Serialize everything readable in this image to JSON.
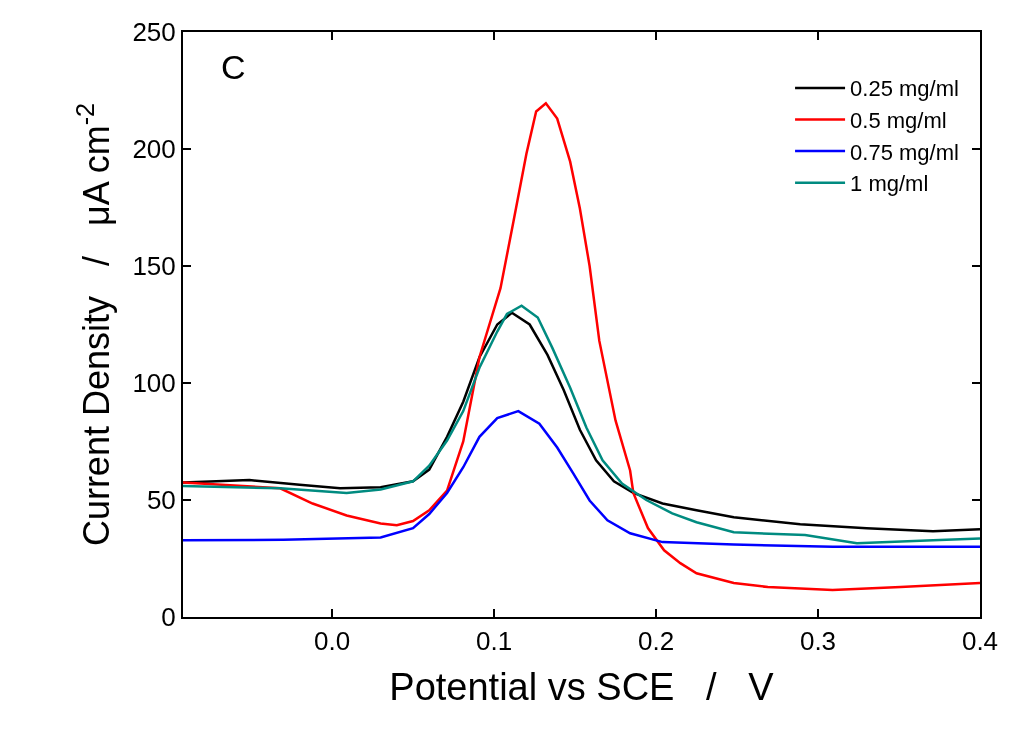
{
  "chart_data": {
    "type": "line",
    "xlabel": "Potential vs SCE   /   V",
    "ylabel": "Current Density   /   μA cm$^{-2}$",
    "annotations": [
      "C"
    ],
    "xlim": [
      -0.092,
      0.4
    ],
    "ylim": [
      0,
      250
    ],
    "xticks": [
      {
        "value": 0,
        "label": "0.0"
      },
      0.1,
      0.2,
      0.3,
      0.4
    ],
    "yticks": [
      0,
      50,
      100,
      150,
      200,
      250
    ],
    "legend": "top right",
    "line_style": "solid",
    "marker": "none",
    "series": [
      {
        "name": "0.25 mg/ml",
        "color": "#000000",
        "x": [
          -0.092,
          -0.051,
          -0.02,
          0.005,
          0.03,
          0.05,
          0.06,
          0.071,
          0.081,
          0.091,
          0.102,
          0.111,
          0.122,
          0.133,
          0.143,
          0.153,
          0.163,
          0.174,
          0.186,
          0.204,
          0.225,
          0.248,
          0.289,
          0.33,
          0.371,
          0.4
        ],
        "values": [
          57.5,
          58.5,
          56.5,
          55,
          55.5,
          58,
          63,
          77,
          92,
          111,
          125,
          130,
          125,
          112,
          97,
          80,
          67,
          58,
          53,
          48.5,
          45.6,
          42.6,
          39.6,
          37.9,
          36.6,
          37.5
        ]
      },
      {
        "name": "0.5 mg/ml",
        "color": "#ff0000",
        "x": [
          -0.092,
          -0.032,
          -0.012,
          0.009,
          0.03,
          0.04,
          0.05,
          0.06,
          0.071,
          0.081,
          0.091,
          0.104,
          0.112,
          0.12,
          0.126,
          0.132,
          0.139,
          0.147,
          0.153,
          0.159,
          0.165,
          0.175,
          0.184,
          0.186,
          0.195,
          0.205,
          0.215,
          0.225,
          0.248,
          0.269,
          0.309,
          0.351,
          0.4
        ],
        "values": [
          57.5,
          55,
          48.5,
          43.4,
          40,
          39.2,
          41,
          45.6,
          54,
          75,
          111,
          140.5,
          169,
          198,
          216,
          219.5,
          213,
          194.6,
          174.6,
          150,
          118,
          84,
          62.6,
          53,
          38,
          28.5,
          23,
          18.7,
          14.5,
          12.8,
          11.5,
          12.8,
          14.5
        ]
      },
      {
        "name": "0.75 mg/ml",
        "color": "#0000ff",
        "x": [
          -0.092,
          -0.03,
          0.03,
          0.05,
          0.06,
          0.071,
          0.081,
          0.091,
          0.102,
          0.115,
          0.128,
          0.139,
          0.149,
          0.159,
          0.17,
          0.184,
          0.204,
          0.248,
          0.309,
          0.4
        ],
        "values": [
          32.8,
          33,
          34,
          38,
          44,
          53,
          64,
          77,
          85,
          88,
          82.6,
          72.4,
          61.3,
          49.8,
          41.3,
          35.8,
          32,
          31,
          30,
          30
        ]
      },
      {
        "name": "1 mg/ml",
        "color": "#008b80",
        "x": [
          -0.092,
          -0.032,
          0.009,
          0.03,
          0.05,
          0.06,
          0.071,
          0.081,
          0.091,
          0.102,
          0.108,
          0.117,
          0.127,
          0.136,
          0.147,
          0.157,
          0.167,
          0.179,
          0.194,
          0.21,
          0.225,
          0.248,
          0.292,
          0.324,
          0.371,
          0.4
        ],
        "values": [
          56,
          55,
          53,
          54.5,
          58,
          64.7,
          75.4,
          88,
          106.5,
          122,
          129.5,
          133,
          128,
          115,
          98,
          81,
          67,
          57,
          50,
          44.3,
          40.5,
          36.2,
          35,
          31.5,
          32.8,
          33.6
        ]
      }
    ]
  }
}
